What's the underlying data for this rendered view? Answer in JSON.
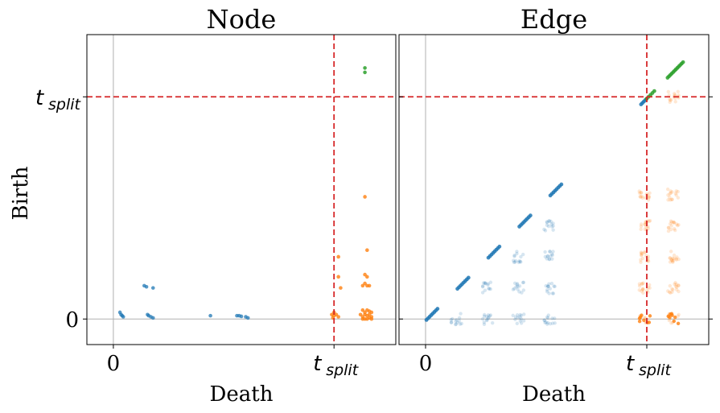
{
  "figure": {
    "ylabel": "Birth",
    "y_ticks": [
      "0",
      "t",
      "split"
    ]
  },
  "colors": {
    "normal": "#1f77b4",
    "split_death": "#ff7f0e",
    "split_both": "#2ca02c",
    "threshold": "#d62728",
    "zero_line": "#b0b0b0"
  },
  "chart_data": [
    {
      "type": "scatter",
      "title": "Node",
      "xlabel": "Death",
      "ylabel": "Birth",
      "x_ticks": [
        {
          "value": 0,
          "label": "0"
        },
        {
          "value": 1.0,
          "label": "t_split"
        }
      ],
      "y_ticks": [
        {
          "value": 0,
          "label": "0"
        },
        {
          "value": 1.0,
          "label": "t_split"
        }
      ],
      "xlim": [
        -0.12,
        1.28
      ],
      "ylim": [
        -0.115,
        1.28
      ],
      "threshold": 1.0,
      "grid": false,
      "series": [
        {
          "color": "#1f77b4",
          "opacity": 0.75,
          "points": [
            [
              0.03,
              0.03
            ],
            [
              0.04,
              0.015
            ],
            [
              0.035,
              0.02
            ],
            [
              0.045,
              0.01
            ],
            [
              0.14,
              0.15
            ],
            [
              0.15,
              0.145
            ],
            [
              0.18,
              0.14
            ],
            [
              0.155,
              0.02
            ],
            [
              0.17,
              0.01
            ],
            [
              0.18,
              0.005
            ],
            [
              0.16,
              0.015
            ],
            [
              0.44,
              0.015
            ],
            [
              0.56,
              0.015
            ],
            [
              0.57,
              0.015
            ],
            [
              0.6,
              0.01
            ],
            [
              0.61,
              0.005
            ],
            [
              0.58,
              0.012
            ]
          ]
        },
        {
          "color": "#ff7f0e",
          "opacity": 0.8,
          "points": [
            [
              0.99,
              0.02
            ],
            [
              1.0,
              0.015
            ],
            [
              1.01,
              0.02
            ],
            [
              1.02,
              0.01
            ],
            [
              1.0,
              0.03
            ],
            [
              0.995,
              0.005
            ],
            [
              1.02,
              0.28
            ],
            [
              1.03,
              0.14
            ],
            [
              1.02,
              0.19
            ],
            [
              1.14,
              0.55
            ],
            [
              1.15,
              0.31
            ],
            [
              1.14,
              0.2
            ],
            [
              1.15,
              0.19
            ],
            [
              1.14,
              0.16
            ],
            [
              1.15,
              0.15
            ],
            [
              1.16,
              0.15
            ],
            [
              1.13,
              0.15
            ],
            [
              1.13,
              0.01
            ],
            [
              1.14,
              0.02
            ],
            [
              1.15,
              0.015
            ],
            [
              1.16,
              0.005
            ],
            [
              1.17,
              0.03
            ],
            [
              1.13,
              0.04
            ],
            [
              1.15,
              0.04
            ],
            [
              1.16,
              0.02
            ],
            [
              1.14,
              0.0
            ],
            [
              1.17,
              0.01
            ],
            [
              1.12,
              0.02
            ],
            [
              1.15,
              0.0
            ],
            [
              1.16,
              0.035
            ],
            [
              1.13,
              0.0
            ],
            [
              1.17,
              0.0
            ],
            [
              1.14,
              0.03
            ]
          ]
        },
        {
          "color": "#2ca02c",
          "opacity": 0.85,
          "points": [
            [
              1.14,
              1.13
            ],
            [
              1.14,
              1.11
            ]
          ]
        }
      ]
    },
    {
      "type": "scatter",
      "title": "Edge",
      "xlabel": "Death",
      "ylabel": "",
      "x_ticks": [
        {
          "value": 0,
          "label": "0"
        },
        {
          "value": 1.0,
          "label": "t_split"
        }
      ],
      "y_ticks": [
        {
          "value": 0,
          "label": "0"
        },
        {
          "value": 1.0,
          "label": "t_split"
        }
      ],
      "xlim": [
        -0.12,
        1.28
      ],
      "ylim": [
        -0.115,
        1.28
      ],
      "threshold": 1.0,
      "grid": false,
      "diagonal_runs": [
        {
          "start": 0.0,
          "end": 0.05,
          "n": 8,
          "color": "#1f77b4"
        },
        {
          "start": 0.14,
          "end": 0.19,
          "n": 8,
          "color": "#1f77b4"
        },
        {
          "start": 0.28,
          "end": 0.33,
          "n": 8,
          "color": "#1f77b4"
        },
        {
          "start": 0.42,
          "end": 0.47,
          "n": 8,
          "color": "#1f77b4"
        },
        {
          "start": 0.56,
          "end": 0.61,
          "n": 8,
          "color": "#1f77b4"
        },
        {
          "start": 0.97,
          "end": 0.995,
          "n": 5,
          "color": "#1f77b4"
        },
        {
          "start": 0.995,
          "end": 1.03,
          "n": 5,
          "color": "#2ca02c"
        },
        {
          "start": 1.09,
          "end": 1.16,
          "n": 12,
          "color": "#2ca02c"
        }
      ],
      "faint_clusters": {
        "normal_x": [
          0.14,
          0.28,
          0.42,
          0.56
        ],
        "normal_y": [
          0.0,
          0.14,
          0.28,
          0.42,
          0.56
        ],
        "split_x": [
          0.99,
          1.12
        ],
        "split_y": [
          0.0,
          0.14,
          0.28,
          0.42,
          0.56,
          1.0
        ],
        "opacity": 0.18
      }
    }
  ]
}
